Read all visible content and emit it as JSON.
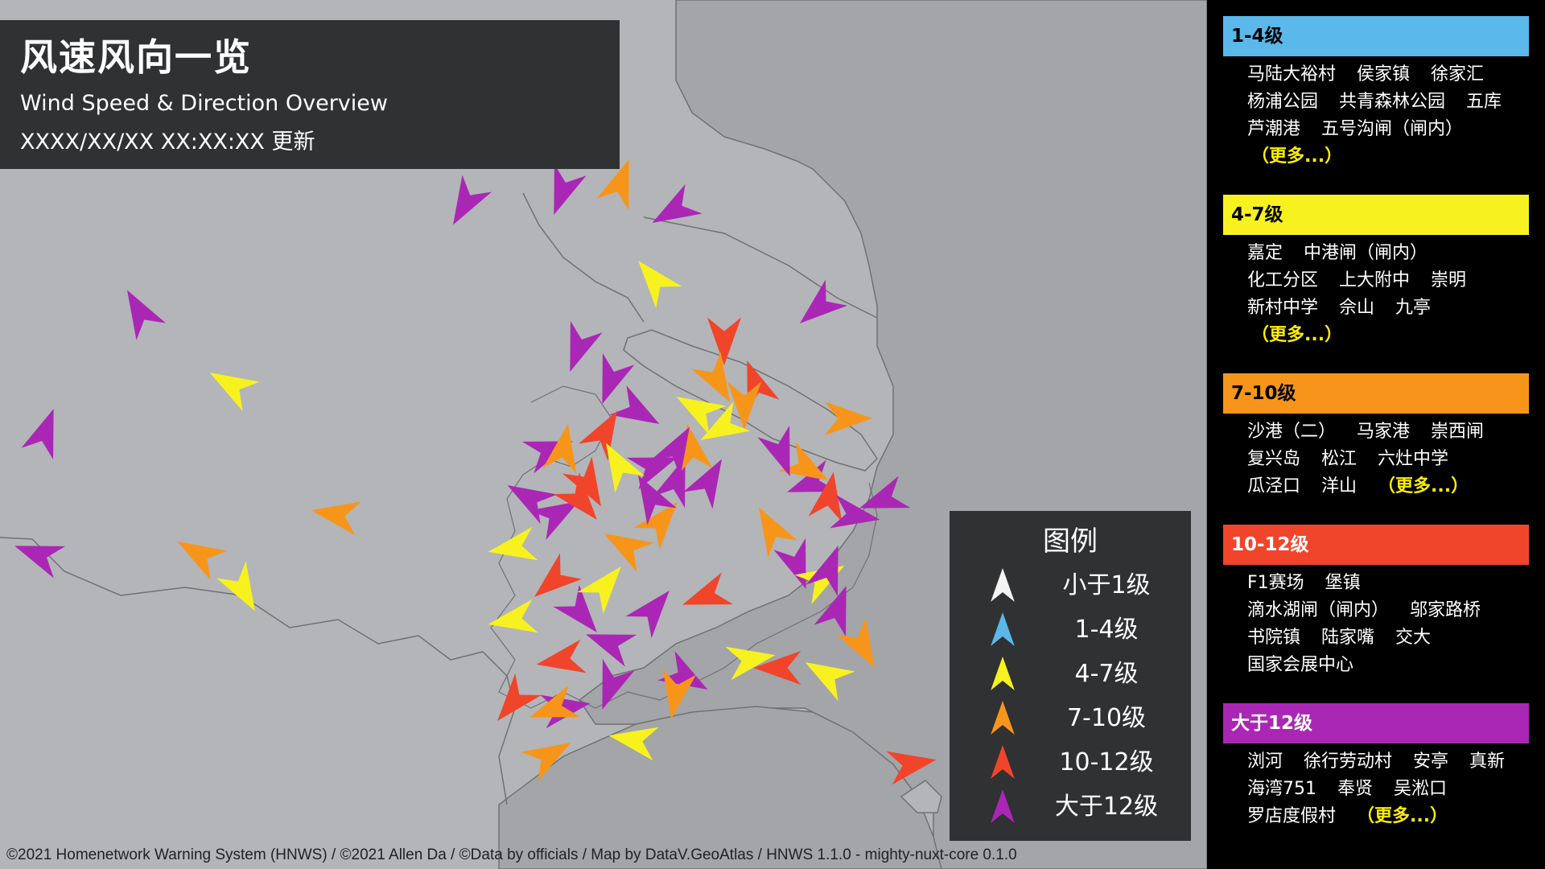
{
  "header": {
    "title": "风速风向一览",
    "subtitle": "Wind Speed & Direction Overview",
    "updated": "XXXX/XX/XX XX:XX:XX 更新"
  },
  "legend": {
    "title": "图例",
    "items": [
      {
        "label": "小于1级",
        "color": "#f4f4f4"
      },
      {
        "label": "1-4级",
        "color": "#5ab8ea"
      },
      {
        "label": "4-7级",
        "color": "#f7f21f"
      },
      {
        "label": "7-10级",
        "color": "#f7951b"
      },
      {
        "label": "10-12级",
        "color": "#f0452b"
      },
      {
        "label": "大于12级",
        "color": "#aa27b5"
      }
    ]
  },
  "footer": "©2021 Homenetwork Warning System (HNWS) / ©2021 Allen Da / ©Data by officials / Map by DataV.GeoAtlas / HNWS 1.1.0 - mighty-nuxt-core 0.1.0",
  "categories": [
    {
      "title": "1-4级",
      "color": "#5ab8ea",
      "text_color": "#000",
      "lines": [
        [
          "马陆大裕村",
          "侯家镇",
          "徐家汇"
        ],
        [
          "杨浦公园",
          "共青森林公园",
          "五库"
        ],
        [
          "芦潮港",
          "五号沟闸（闸内）"
        ]
      ],
      "more": "（更多...）",
      "more_inline": false
    },
    {
      "title": "4-7级",
      "color": "#f7f21f",
      "text_color": "#000",
      "lines": [
        [
          "嘉定",
          "中港闸（闸内）"
        ],
        [
          "化工分区",
          "上大附中",
          "崇明"
        ],
        [
          "新村中学",
          "佘山",
          "九亭"
        ]
      ],
      "more": "（更多...）",
      "more_inline": false
    },
    {
      "title": "7-10级",
      "color": "#f7951b",
      "text_color": "#000",
      "lines": [
        [
          "沙港（二）",
          "马家港",
          "崇西闸"
        ],
        [
          "复兴岛",
          "松江",
          "六灶中学"
        ],
        [
          "瓜泾口",
          "洋山"
        ]
      ],
      "more": "（更多...）",
      "more_inline": true
    },
    {
      "title": "10-12级",
      "color": "#f0452b",
      "text_color": "#fff",
      "lines": [
        [
          "F1赛场",
          "堡镇"
        ],
        [
          "滴水湖闸（闸内）",
          "邬家路桥"
        ],
        [
          "书院镇",
          "陆家嘴",
          "交大"
        ],
        [
          "国家会展中心"
        ]
      ],
      "more": "",
      "more_inline": false
    },
    {
      "title": "大于12级",
      "color": "#aa27b5",
      "text_color": "#fff",
      "lines": [
        [
          "浏河",
          "徐行劳动村",
          "安亭",
          "真新"
        ],
        [
          "海湾751",
          "奉贤",
          "吴淞口"
        ],
        [
          "罗店度假村"
        ]
      ],
      "more": "（更多...）",
      "more_inline": true
    }
  ],
  "stations": [
    {
      "level": 5,
      "dir": 330
    },
    {
      "level": 2,
      "dir": 300
    },
    {
      "level": 5,
      "dir": 20
    },
    {
      "level": 3,
      "dir": 280
    },
    {
      "level": 3,
      "dir": 300
    },
    {
      "level": 2,
      "dir": 150
    },
    {
      "level": 5,
      "dir": 290
    },
    {
      "level": 4,
      "dir": 180
    },
    {
      "level": 5,
      "dir": 230
    },
    {
      "level": 2,
      "dir": 320
    },
    {
      "level": 5,
      "dir": 210
    },
    {
      "level": 3,
      "dir": 20
    },
    {
      "level": 5,
      "dir": 240
    },
    {
      "level": 5,
      "dir": 200
    },
    {
      "level": 4,
      "dir": 340
    },
    {
      "level": 5,
      "dir": 250
    },
    {
      "level": 5,
      "dir": 30
    },
    {
      "level": 3,
      "dir": 180
    },
    {
      "level": 5,
      "dir": 200
    },
    {
      "level": 5,
      "dir": 120
    },
    {
      "level": 4,
      "dir": 30
    },
    {
      "level": 5,
      "dir": 70
    },
    {
      "level": 2,
      "dir": 240
    },
    {
      "level": 3,
      "dir": 330
    },
    {
      "level": 5,
      "dir": 160
    },
    {
      "level": 4,
      "dir": 10
    },
    {
      "level": 5,
      "dir": 100
    },
    {
      "level": 2,
      "dir": 60
    },
    {
      "level": 5,
      "dir": 20
    },
    {
      "level": 3,
      "dir": 150
    },
    {
      "level": 5,
      "dir": 80
    },
    {
      "level": 4,
      "dir": 220
    },
    {
      "level": 5,
      "dir": 40
    },
    {
      "level": 5,
      "dir": 140
    },
    {
      "level": 3,
      "dir": 300
    },
    {
      "level": 5,
      "dir": 60
    },
    {
      "level": 4,
      "dir": 230
    },
    {
      "level": 2,
      "dir": 260
    },
    {
      "level": 5,
      "dir": 300
    },
    {
      "level": 4,
      "dir": 140
    },
    {
      "level": 5,
      "dir": 70
    },
    {
      "level": 5,
      "dir": 20
    },
    {
      "level": 2,
      "dir": 330
    },
    {
      "level": 3,
      "dir": 350
    },
    {
      "level": 4,
      "dir": 150
    },
    {
      "level": 2,
      "dir": 260
    },
    {
      "level": 5,
      "dir": 290
    },
    {
      "level": 3,
      "dir": 40
    },
    {
      "level": 5,
      "dir": 120
    },
    {
      "level": 2,
      "dir": 280
    },
    {
      "level": 3,
      "dir": 190
    },
    {
      "level": 4,
      "dir": 260
    },
    {
      "level": 5,
      "dir": 200
    },
    {
      "level": 4,
      "dir": 250
    },
    {
      "level": 2,
      "dir": 80
    },
    {
      "level": 5,
      "dir": 20
    },
    {
      "level": 3,
      "dir": 120
    },
    {
      "level": 5,
      "dir": 160
    },
    {
      "level": 2,
      "dir": 300
    },
    {
      "level": 3,
      "dir": 150
    },
    {
      "level": 5,
      "dir": 30
    },
    {
      "level": 5,
      "dir": 330
    },
    {
      "level": 3,
      "dir": 10
    },
    {
      "level": 2,
      "dir": 40
    },
    {
      "level": 3,
      "dir": 250
    },
    {
      "level": 4,
      "dir": 270
    },
    {
      "level": 2,
      "dir": 300
    },
    {
      "level": 5,
      "dir": 250
    },
    {
      "level": 3,
      "dir": 90
    },
    {
      "level": 4,
      "dir": 80
    },
    {
      "level": 5,
      "dir": 200
    },
    {
      "level": 3,
      "dir": 60
    }
  ]
}
